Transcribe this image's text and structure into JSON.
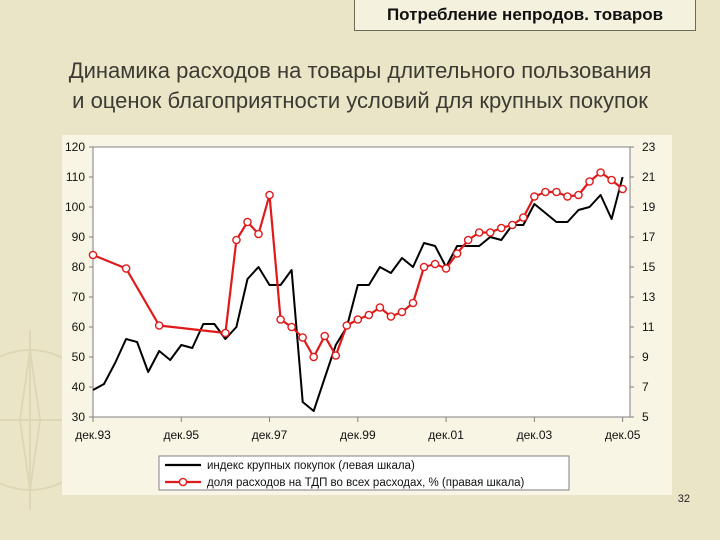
{
  "header": {
    "tab_label": "Потребление непродов. товаров"
  },
  "title": {
    "line1": "Динамика расходов на товары длительного пользования",
    "line2": "и оценок благоприятности условий для крупных покупок"
  },
  "page_number": "32",
  "colors": {
    "background": "#ebe5c8",
    "series_black": "#000000",
    "series_red": "#e01a1a",
    "plot_bg": "#ffffff"
  },
  "chart_data": {
    "type": "line",
    "x_tick_labels": [
      "дек.93",
      "дек.95",
      "дек.97",
      "дек.99",
      "дек.01",
      "дек.03",
      "дек.05"
    ],
    "xlim": [
      "1993-12",
      "2006-02"
    ],
    "left_axis": {
      "ylim": [
        30,
        120
      ],
      "ticks": [
        30,
        40,
        50,
        60,
        70,
        80,
        90,
        100,
        110,
        120
      ]
    },
    "right_axis": {
      "ylim": [
        5,
        23
      ],
      "ticks": [
        5,
        7,
        9,
        11,
        13,
        15,
        17,
        19,
        21,
        23
      ]
    },
    "legend_position": "bottom",
    "series": [
      {
        "name": "индекс крупных покупок (левая шкала)",
        "axis": "left",
        "color": "#000000",
        "marker": "none",
        "x": [
          "1993-12",
          "1994-03",
          "1994-06",
          "1994-09",
          "1994-12",
          "1995-03",
          "1995-06",
          "1995-09",
          "1995-12",
          "1996-03",
          "1996-06",
          "1996-09",
          "1996-12",
          "1997-03",
          "1997-06",
          "1997-09",
          "1997-12",
          "1998-03",
          "1998-06",
          "1998-09",
          "1998-12",
          "1999-03",
          "1999-06",
          "1999-09",
          "1999-12",
          "2000-03",
          "2000-06",
          "2000-09",
          "2000-12",
          "2001-03",
          "2001-06",
          "2001-09",
          "2001-12",
          "2002-03",
          "2002-06",
          "2002-09",
          "2002-12",
          "2003-03",
          "2003-06",
          "2003-09",
          "2003-12",
          "2004-03",
          "2004-06",
          "2004-09",
          "2004-12",
          "2005-03",
          "2005-06",
          "2005-09",
          "2005-12"
        ],
        "values": [
          39,
          41,
          48,
          56,
          55,
          45,
          52,
          49,
          54,
          53,
          61,
          61,
          56,
          60,
          76,
          80,
          74,
          74,
          79,
          35,
          32,
          43,
          54,
          60,
          74,
          74,
          80,
          78,
          83,
          80,
          88,
          87,
          80,
          87,
          87,
          87,
          90,
          89,
          94,
          94,
          101,
          98,
          95,
          95,
          99,
          100,
          104,
          96,
          110
        ]
      },
      {
        "name": "доля расходов на ТДП во всех расходах, % (правая шкала)",
        "axis": "right",
        "color": "#e01a1a",
        "marker": "open-circle",
        "x": [
          "1993-12",
          "1994-09",
          "1995-06",
          "1996-12",
          "1997-03",
          "1997-06",
          "1997-09",
          "1997-12",
          "1998-03",
          "1998-06",
          "1998-09",
          "1998-12",
          "1999-03",
          "1999-06",
          "1999-09",
          "1999-12",
          "2000-03",
          "2000-06",
          "2000-09",
          "2000-12",
          "2001-03",
          "2001-06",
          "2001-09",
          "2001-12",
          "2002-03",
          "2002-06",
          "2002-09",
          "2002-12",
          "2003-03",
          "2003-06",
          "2003-09",
          "2003-12",
          "2004-03",
          "2004-06",
          "2004-09",
          "2004-12",
          "2005-03",
          "2005-06",
          "2005-09",
          "2005-12"
        ],
        "values": [
          15.8,
          14.9,
          11.1,
          10.6,
          16.8,
          18.0,
          17.2,
          19.8,
          11.5,
          11.0,
          10.3,
          9.0,
          10.4,
          9.1,
          11.1,
          11.5,
          11.8,
          12.3,
          11.7,
          12.0,
          12.6,
          15.0,
          15.2,
          14.9,
          15.9,
          16.8,
          17.3,
          17.3,
          17.6,
          17.8,
          18.3,
          19.7,
          20.0,
          20.0,
          19.7,
          19.8,
          20.7,
          21.3,
          20.8,
          20.2
        ]
      }
    ]
  }
}
